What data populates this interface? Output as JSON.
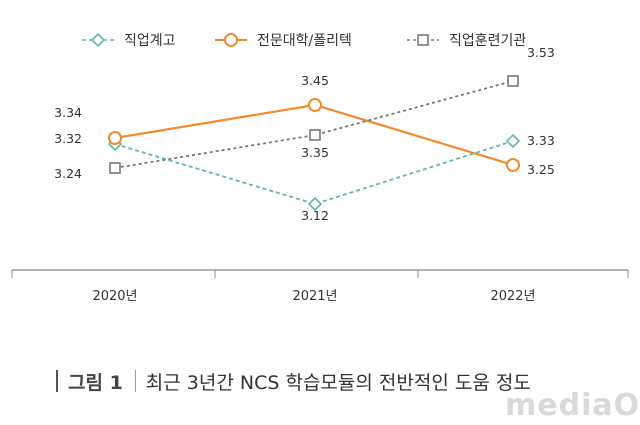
{
  "chart_data": {
    "type": "line",
    "categories": [
      "2020년",
      "2021년",
      "2022년"
    ],
    "ylim": [
      3.0,
      3.6
    ],
    "grid": false,
    "legend_position": "top",
    "series": [
      {
        "name": "직업계고",
        "values": [
          3.32,
          3.12,
          3.33
        ],
        "labels": [
          "3.32",
          "3.12",
          "3.33"
        ],
        "color": "#5fb8a8",
        "marker": "diamond",
        "dash": "dashed"
      },
      {
        "name": "전문대학/폴리텍",
        "values": [
          3.34,
          3.45,
          3.25
        ],
        "labels": [
          "3.34",
          "3.45",
          "3.25"
        ],
        "color": "#f08a2c",
        "marker": "circle",
        "dash": "solid"
      },
      {
        "name": "직업훈련기관",
        "values": [
          3.24,
          3.35,
          3.53
        ],
        "labels": [
          "3.24",
          "3.35",
          "3.53"
        ],
        "color": "#777777",
        "marker": "square",
        "dash": "dotted"
      }
    ]
  },
  "caption": {
    "label": "그림 1",
    "text": "최근 3년간 NCS 학습모듈의 전반적인 도움 정도"
  },
  "watermark": "mediaOn"
}
